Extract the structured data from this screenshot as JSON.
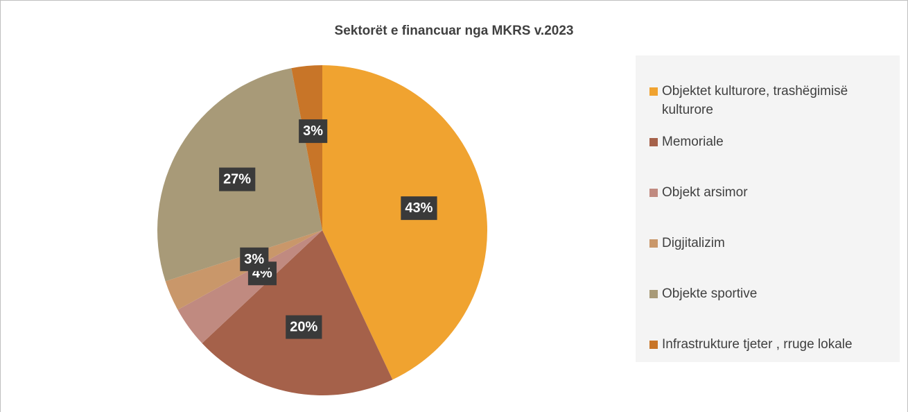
{
  "chart_data": {
    "type": "pie",
    "title": "Sektorët e financuar nga MKRS v.2023",
    "categories": [
      "Objektet kulturore, trashëgimisë kulturore",
      "Memoriale",
      "Objekt arsimor",
      "Digjitalizim",
      "Objekte sportive",
      "Infrastrukture tjeter , rruge lokale"
    ],
    "values": [
      43,
      20,
      4,
      3,
      27,
      3
    ],
    "value_labels": [
      "43%",
      "20%",
      "4%",
      "3%",
      "27%",
      "3%"
    ],
    "colors": [
      "#F0A330",
      "#A5614A",
      "#C08A80",
      "#C9976A",
      "#A89A78",
      "#C87528"
    ],
    "legend": "right"
  }
}
